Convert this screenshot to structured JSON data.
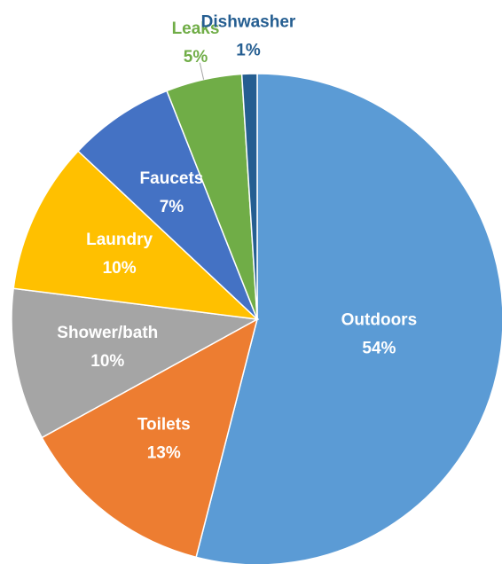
{
  "chart_data": {
    "type": "pie",
    "categories": [
      "Outdoors",
      "Toilets",
      "Shower/bath",
      "Laundry",
      "Faucets",
      "Leaks",
      "Dishwasher"
    ],
    "values": [
      54,
      13,
      10,
      10,
      7,
      5,
      1
    ],
    "value_labels": [
      "54%",
      "13%",
      "10%",
      "10%",
      "7%",
      "5%",
      "1%"
    ],
    "colors": [
      "#5b9bd5",
      "#ed7d31",
      "#a5a5a5",
      "#ffc000",
      "#4472c4",
      "#70ad47",
      "#255e91"
    ]
  }
}
